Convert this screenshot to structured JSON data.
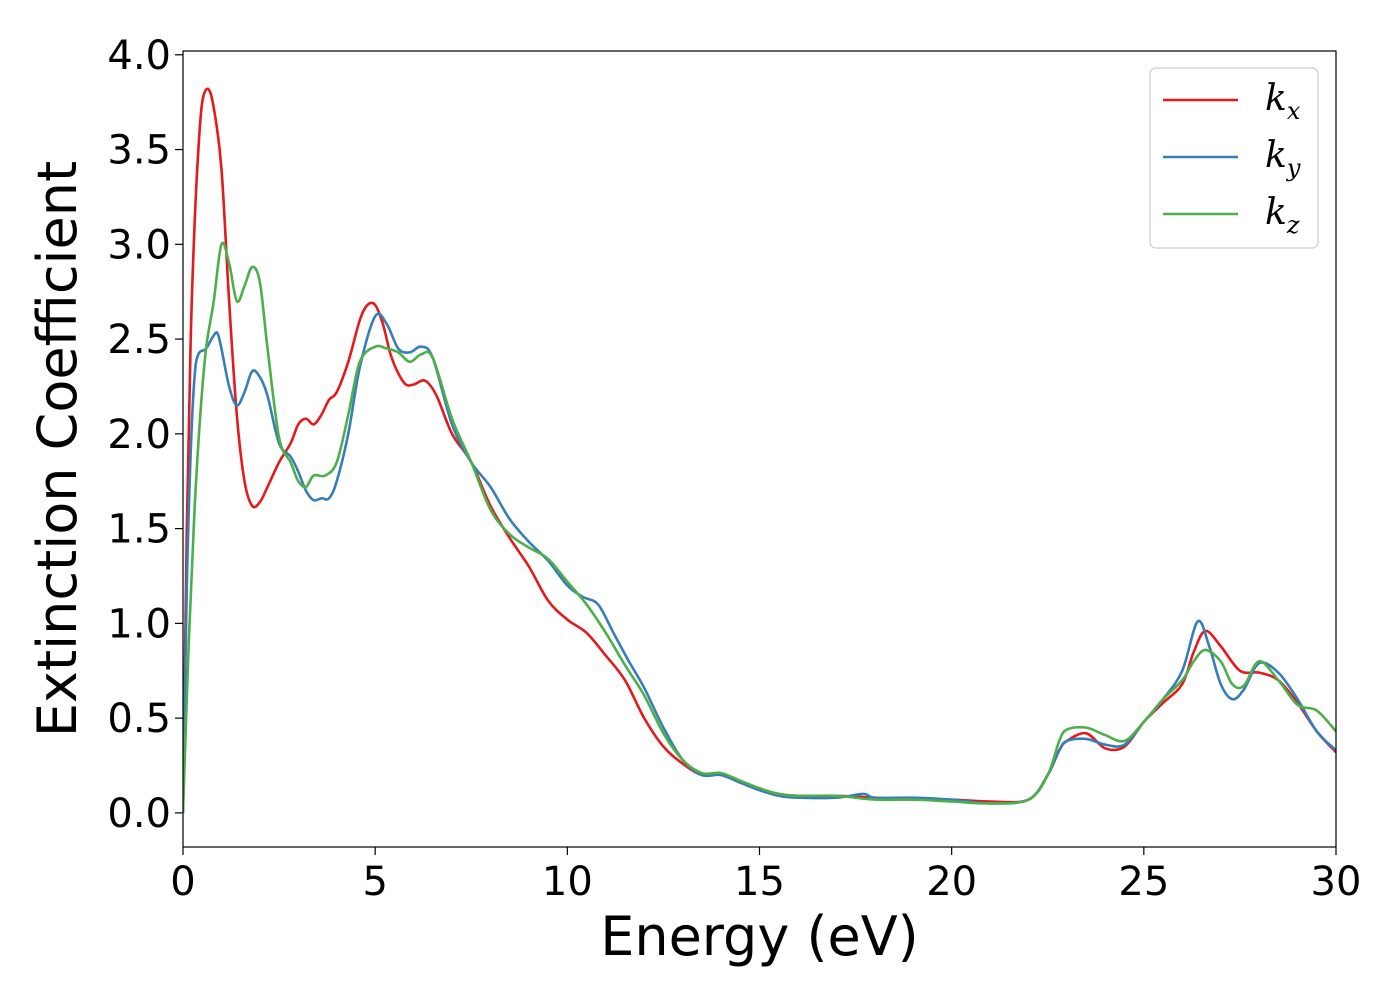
{
  "chart_data": {
    "type": "line",
    "xlabel": "Energy (eV)",
    "ylabel": "Extinction Coefficient",
    "xlim": [
      0,
      30
    ],
    "ylim": [
      -0.18,
      4.02
    ],
    "xticks": [
      0,
      5,
      10,
      15,
      20,
      25,
      30
    ],
    "yticks": [
      0.0,
      0.5,
      1.0,
      1.5,
      2.0,
      2.5,
      3.0,
      3.5,
      4.0
    ],
    "xtick_labels": [
      "0",
      "5",
      "10",
      "15",
      "20",
      "25",
      "30"
    ],
    "ytick_labels": [
      "0.0",
      "0.5",
      "1.0",
      "1.5",
      "2.0",
      "2.5",
      "3.0",
      "3.5",
      "4.0"
    ],
    "grid": false,
    "legend_position": "top-right",
    "series": [
      {
        "name": "k",
        "subscript": "x",
        "color": "#e41a1c",
        "x": [
          0,
          0.1,
          0.2,
          0.3,
          0.4,
          0.5,
          0.65,
          0.8,
          1.0,
          1.2,
          1.4,
          1.6,
          1.8,
          2.0,
          2.2,
          2.5,
          2.8,
          3.0,
          3.2,
          3.4,
          3.6,
          3.8,
          4.0,
          4.3,
          4.6,
          4.8,
          5.0,
          5.2,
          5.4,
          5.6,
          5.8,
          6.0,
          6.3,
          6.6,
          7.0,
          7.5,
          8.0,
          8.5,
          9.0,
          9.5,
          10.0,
          10.5,
          11.0,
          11.5,
          12.0,
          12.5,
          13.0,
          13.5,
          14.0,
          14.5,
          15.0,
          15.5,
          16.0,
          17.0,
          18.0,
          19.0,
          20.0,
          21.0,
          22.0,
          22.5,
          22.8,
          23.0,
          23.5,
          24.0,
          24.5,
          25.0,
          25.5,
          26.0,
          26.3,
          26.6,
          27.0,
          27.5,
          28.0,
          28.5,
          29.0,
          29.5,
          30.0
        ],
        "y": [
          0.0,
          1.5,
          2.5,
          3.1,
          3.5,
          3.75,
          3.82,
          3.72,
          3.4,
          2.7,
          2.1,
          1.75,
          1.62,
          1.64,
          1.72,
          1.85,
          1.95,
          2.05,
          2.08,
          2.05,
          2.1,
          2.18,
          2.22,
          2.38,
          2.6,
          2.68,
          2.68,
          2.58,
          2.42,
          2.32,
          2.26,
          2.26,
          2.28,
          2.2,
          2.0,
          1.85,
          1.62,
          1.45,
          1.3,
          1.12,
          1.02,
          0.95,
          0.83,
          0.7,
          0.5,
          0.35,
          0.26,
          0.2,
          0.2,
          0.16,
          0.12,
          0.1,
          0.09,
          0.09,
          0.08,
          0.07,
          0.07,
          0.06,
          0.07,
          0.2,
          0.33,
          0.38,
          0.42,
          0.34,
          0.35,
          0.48,
          0.58,
          0.68,
          0.85,
          0.96,
          0.88,
          0.75,
          0.74,
          0.7,
          0.58,
          0.43,
          0.32
        ]
      },
      {
        "name": "k",
        "subscript": "y",
        "color": "#377eb8",
        "x": [
          0,
          0.1,
          0.2,
          0.3,
          0.4,
          0.6,
          0.8,
          0.9,
          1.0,
          1.2,
          1.4,
          1.6,
          1.8,
          2.0,
          2.2,
          2.5,
          2.8,
          3.0,
          3.2,
          3.4,
          3.6,
          3.8,
          4.0,
          4.3,
          4.6,
          5.0,
          5.3,
          5.6,
          5.9,
          6.2,
          6.5,
          7.0,
          7.5,
          8.0,
          8.5,
          9.0,
          9.5,
          10.0,
          10.4,
          10.8,
          11.2,
          11.6,
          12.0,
          12.5,
          13.0,
          13.5,
          14.0,
          14.5,
          15.0,
          15.5,
          16.0,
          17.0,
          17.7,
          18.0,
          19.0,
          20.0,
          21.0,
          22.0,
          22.5,
          22.8,
          23.0,
          23.5,
          24.0,
          24.5,
          25.0,
          25.5,
          26.0,
          26.4,
          26.7,
          27.0,
          27.3,
          27.6,
          28.0,
          28.5,
          29.0,
          29.5,
          30.0
        ],
        "y": [
          0.0,
          1.2,
          1.9,
          2.3,
          2.42,
          2.45,
          2.52,
          2.53,
          2.45,
          2.25,
          2.15,
          2.22,
          2.33,
          2.3,
          2.2,
          1.95,
          1.88,
          1.8,
          1.7,
          1.65,
          1.66,
          1.66,
          1.75,
          2.0,
          2.35,
          2.62,
          2.58,
          2.45,
          2.43,
          2.46,
          2.4,
          2.05,
          1.85,
          1.72,
          1.55,
          1.43,
          1.33,
          1.2,
          1.14,
          1.1,
          0.95,
          0.8,
          0.66,
          0.45,
          0.28,
          0.2,
          0.2,
          0.16,
          0.12,
          0.09,
          0.08,
          0.08,
          0.1,
          0.08,
          0.08,
          0.07,
          0.05,
          0.07,
          0.2,
          0.33,
          0.38,
          0.39,
          0.36,
          0.36,
          0.48,
          0.6,
          0.75,
          1.01,
          0.88,
          0.68,
          0.6,
          0.65,
          0.79,
          0.74,
          0.6,
          0.43,
          0.33
        ]
      },
      {
        "name": "k",
        "subscript": "z",
        "color": "#4daf4a",
        "x": [
          0,
          0.15,
          0.3,
          0.45,
          0.6,
          0.8,
          1.0,
          1.2,
          1.4,
          1.6,
          1.8,
          2.0,
          2.2,
          2.5,
          2.8,
          3.0,
          3.2,
          3.4,
          3.7,
          4.0,
          4.3,
          4.6,
          5.0,
          5.3,
          5.6,
          5.9,
          6.2,
          6.5,
          7.0,
          7.5,
          8.0,
          8.5,
          9.0,
          9.5,
          10.0,
          10.5,
          11.0,
          11.5,
          12.0,
          12.5,
          13.0,
          13.5,
          14.0,
          14.5,
          15.0,
          15.5,
          16.0,
          17.0,
          18.0,
          19.0,
          20.0,
          21.0,
          22.0,
          22.5,
          22.8,
          23.0,
          23.5,
          24.0,
          24.5,
          25.0,
          25.5,
          26.0,
          26.3,
          26.6,
          27.0,
          27.3,
          27.6,
          28.0,
          28.5,
          29.0,
          29.5,
          30.0
        ],
        "y": [
          0.0,
          0.9,
          1.6,
          2.1,
          2.45,
          2.7,
          3.0,
          2.9,
          2.7,
          2.78,
          2.88,
          2.8,
          2.45,
          1.98,
          1.85,
          1.75,
          1.72,
          1.78,
          1.78,
          1.85,
          2.1,
          2.38,
          2.46,
          2.45,
          2.43,
          2.38,
          2.42,
          2.4,
          2.08,
          1.85,
          1.6,
          1.47,
          1.4,
          1.34,
          1.22,
          1.1,
          0.95,
          0.78,
          0.62,
          0.42,
          0.28,
          0.21,
          0.21,
          0.17,
          0.13,
          0.1,
          0.09,
          0.09,
          0.07,
          0.07,
          0.06,
          0.05,
          0.07,
          0.2,
          0.38,
          0.44,
          0.45,
          0.41,
          0.38,
          0.48,
          0.6,
          0.7,
          0.8,
          0.86,
          0.8,
          0.68,
          0.67,
          0.8,
          0.7,
          0.57,
          0.54,
          0.43
        ]
      }
    ]
  }
}
